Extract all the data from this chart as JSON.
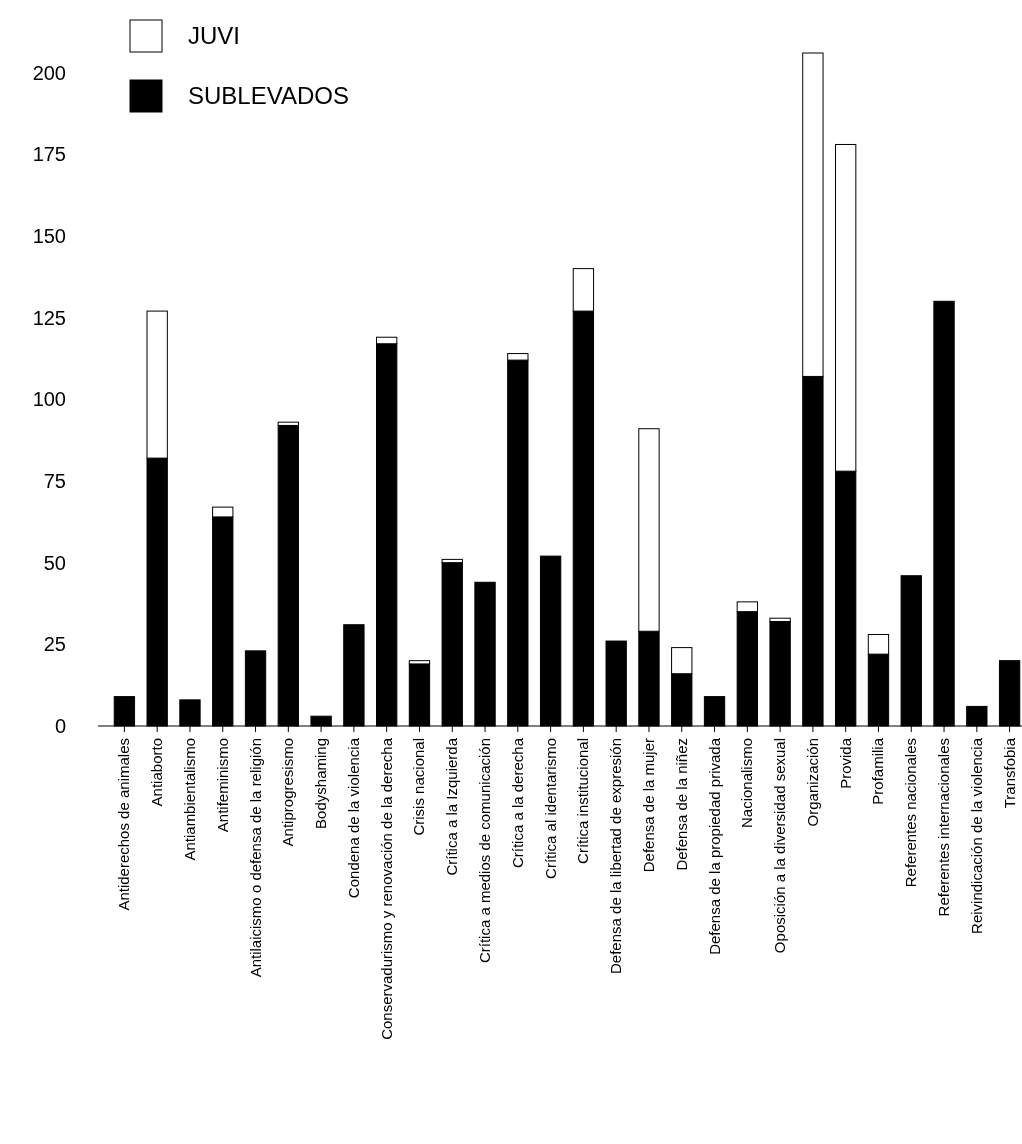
{
  "chart_data": {
    "type": "bar",
    "stacked": true,
    "legend": "top left",
    "categories": [
      "Antiderechos de animales",
      "Antiaborto",
      "Antiambientalismo",
      "Antifeminismo",
      "Antilaicismo o defensa de la religión",
      "Antiprogresismo",
      "Bodyshaming",
      "Condena de la violencia",
      "Conservadurismo y renovación de la derecha",
      "Crisis nacional",
      "Crítica a la Izquierda",
      "Crítica a medios de comunicación",
      "Crítica a la derecha",
      "Crítica al identarismo",
      "Crítica institucional",
      "Defensa de la libertad de expresión",
      "Defensa de la mujer",
      "Defensa de la niñez",
      "Defensa de la propiedad privada",
      "Nacionalismo",
      "Oposición a la diversidad sexual",
      "Organización",
      "Provida",
      "Profamilia",
      "Referentes nacionales",
      "Referentes internacionales",
      "Reivindicación de la violencia",
      "Transfobia"
    ],
    "series": [
      {
        "name": "SUBLEVADOS",
        "color": "#000000",
        "values": [
          9,
          82,
          8,
          64,
          23,
          92,
          3,
          31,
          117,
          19,
          50,
          44,
          112,
          52,
          127,
          26,
          29,
          16,
          9,
          35,
          32,
          107,
          78,
          22,
          46,
          130,
          6,
          20
        ]
      },
      {
        "name": "JUVI",
        "color": "#ffffff",
        "values": [
          0,
          45,
          0,
          3,
          0,
          1,
          0,
          0,
          2,
          1,
          1,
          0,
          2,
          0,
          13,
          0,
          62,
          8,
          0,
          3,
          1,
          99,
          100,
          6,
          0,
          0,
          0,
          0
        ]
      }
    ],
    "ylim": [
      0,
      206
    ],
    "yticks": [
      0,
      25,
      50,
      75,
      100,
      125,
      150,
      175,
      200
    ]
  }
}
